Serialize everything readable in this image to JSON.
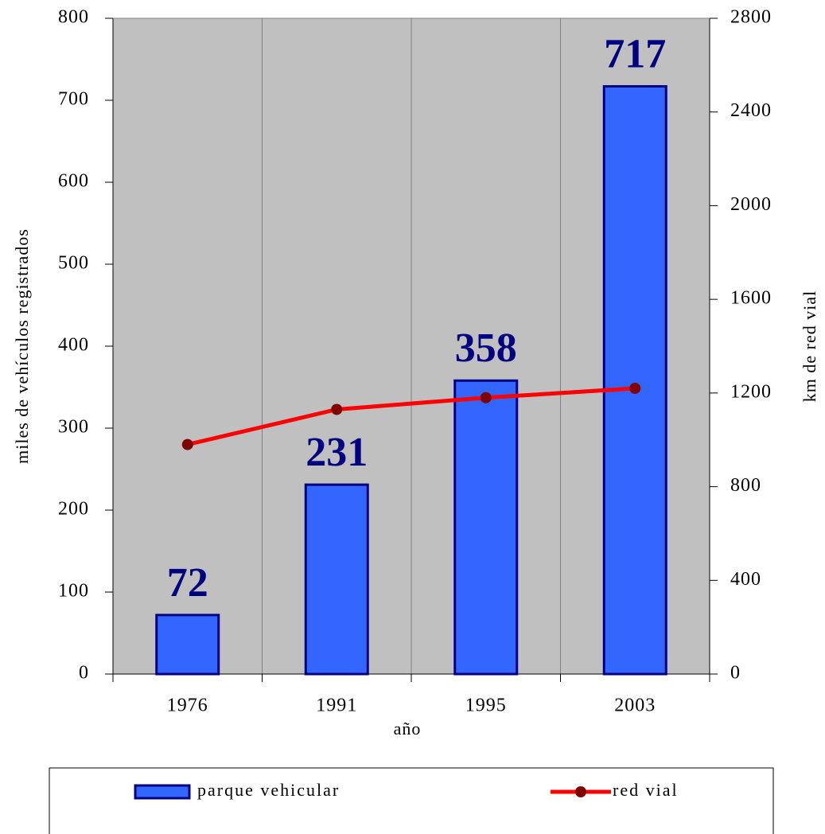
{
  "chart_data": {
    "type": "bar",
    "categories": [
      "1976",
      "1991",
      "1995",
      "2003"
    ],
    "series": [
      {
        "name": "parque vehicular",
        "type": "bar",
        "color": "#3366ff",
        "edge_color": "#000080",
        "values": [
          72,
          231,
          358,
          717
        ]
      },
      {
        "name": "red vial",
        "type": "line",
        "axis": "y2",
        "color": "#ff0000",
        "marker_color": "#800000",
        "values": [
          980,
          1130,
          1180,
          1220
        ]
      }
    ],
    "ylabel": "miles de vehículos registrados",
    "y2label": "km de red vial",
    "xlabel": "año",
    "ylim": [
      0,
      800
    ],
    "yticks": [
      0,
      100,
      200,
      300,
      400,
      500,
      600,
      700,
      800
    ],
    "y2lim": [
      0,
      2800
    ],
    "y2ticks": [
      0,
      400,
      800,
      1200,
      1600,
      2000,
      2400,
      2800
    ],
    "plot_background": "#c0c0c0",
    "legend": "bottom"
  }
}
